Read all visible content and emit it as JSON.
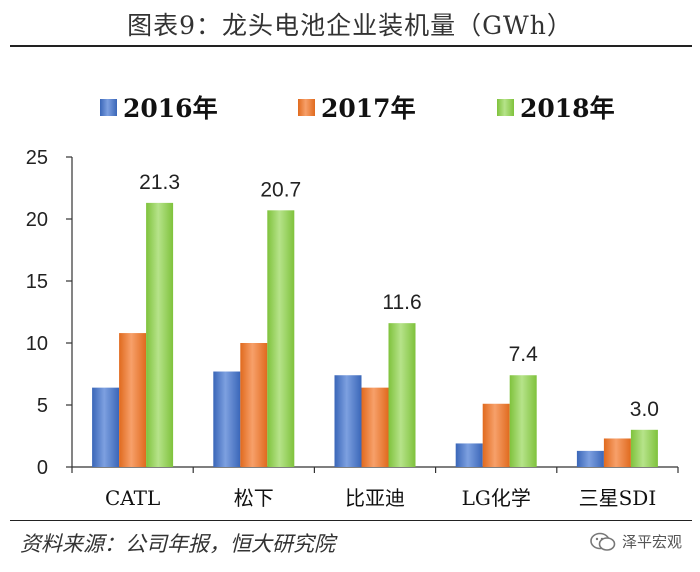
{
  "header": {
    "title": "图表9：龙头电池企业装机量（GWh）"
  },
  "footer": {
    "source": "资料来源：公司年报，恒大研究院",
    "watermark": "泽平宏观"
  },
  "colors": {
    "2016年": "#4472C4",
    "2017年": "#ED7D31",
    "2018年": "#92D050"
  },
  "chart_data": {
    "type": "bar",
    "title": "图表9：龙头电池企业装机量（GWh）",
    "xlabel": "",
    "ylabel": "",
    "categories": [
      "CATL",
      "松下",
      "比亚迪",
      "LG化学",
      "三星SDI"
    ],
    "series": [
      {
        "name": "2016年",
        "values": [
          6.4,
          7.7,
          7.4,
          1.9,
          1.3
        ]
      },
      {
        "name": "2017年",
        "values": [
          10.8,
          10.0,
          6.4,
          5.1,
          2.3
        ]
      },
      {
        "name": "2018年",
        "values": [
          21.3,
          20.7,
          11.6,
          7.4,
          3.0
        ]
      }
    ],
    "data_labels": {
      "series": "2018年",
      "labels": [
        "21.3",
        "20.7",
        "11.6",
        "7.4",
        "3.0"
      ]
    },
    "ylim": [
      0,
      25
    ],
    "yticks": [
      "0",
      "5",
      "10",
      "15",
      "20",
      "25"
    ],
    "grid": false,
    "legend": "top"
  }
}
